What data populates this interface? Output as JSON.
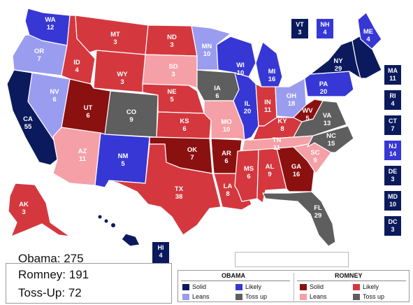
{
  "colors": {
    "obama_solid": "#0b1a5c",
    "obama_likely": "#3737d6",
    "obama_leans": "#9a9cf0",
    "romney_solid": "#8b1010",
    "romney_likely": "#d4383e",
    "romney_leans": "#f5a0a6",
    "toss_up": "#5e5e5e"
  },
  "states": [
    {
      "abbr": "WA",
      "ev": "12",
      "rating": "obama_likely"
    },
    {
      "abbr": "OR",
      "ev": "7",
      "rating": "obama_leans"
    },
    {
      "abbr": "CA",
      "ev": "55",
      "rating": "obama_solid"
    },
    {
      "abbr": "NV",
      "ev": "6",
      "rating": "obama_leans"
    },
    {
      "abbr": "ID",
      "ev": "4",
      "rating": "romney_likely"
    },
    {
      "abbr": "MT",
      "ev": "3",
      "rating": "romney_likely"
    },
    {
      "abbr": "WY",
      "ev": "3",
      "rating": "romney_likely"
    },
    {
      "abbr": "UT",
      "ev": "6",
      "rating": "romney_solid"
    },
    {
      "abbr": "AZ",
      "ev": "11",
      "rating": "romney_leans"
    },
    {
      "abbr": "CO",
      "ev": "9",
      "rating": "toss_up"
    },
    {
      "abbr": "NM",
      "ev": "5",
      "rating": "obama_likely"
    },
    {
      "abbr": "ND",
      "ev": "3",
      "rating": "romney_likely"
    },
    {
      "abbr": "SD",
      "ev": "3",
      "rating": "romney_leans"
    },
    {
      "abbr": "NE",
      "ev": "5",
      "rating": "romney_likely"
    },
    {
      "abbr": "KS",
      "ev": "6",
      "rating": "romney_likely"
    },
    {
      "abbr": "OK",
      "ev": "7",
      "rating": "romney_solid"
    },
    {
      "abbr": "TX",
      "ev": "38",
      "rating": "romney_likely"
    },
    {
      "abbr": "MN",
      "ev": "10",
      "rating": "obama_leans"
    },
    {
      "abbr": "IA",
      "ev": "6",
      "rating": "toss_up"
    },
    {
      "abbr": "MO",
      "ev": "10",
      "rating": "romney_leans"
    },
    {
      "abbr": "AR",
      "ev": "6",
      "rating": "romney_solid"
    },
    {
      "abbr": "LA",
      "ev": "8",
      "rating": "romney_likely"
    },
    {
      "abbr": "WI",
      "ev": "10",
      "rating": "obama_likely"
    },
    {
      "abbr": "IL",
      "ev": "20",
      "rating": "obama_likely"
    },
    {
      "abbr": "MI",
      "ev": "16",
      "rating": "obama_likely"
    },
    {
      "abbr": "IN",
      "ev": "11",
      "rating": "romney_likely"
    },
    {
      "abbr": "OH",
      "ev": "18",
      "rating": "obama_leans"
    },
    {
      "abbr": "KY",
      "ev": "8",
      "rating": "romney_likely"
    },
    {
      "abbr": "TN",
      "ev": "11",
      "rating": "romney_leans"
    },
    {
      "abbr": "MS",
      "ev": "6",
      "rating": "romney_likely"
    },
    {
      "abbr": "AL",
      "ev": "9",
      "rating": "romney_likely"
    },
    {
      "abbr": "GA",
      "ev": "16",
      "rating": "romney_solid"
    },
    {
      "abbr": "FL",
      "ev": "29",
      "rating": "toss_up"
    },
    {
      "abbr": "SC",
      "ev": "9",
      "rating": "romney_leans"
    },
    {
      "abbr": "NC",
      "ev": "15",
      "rating": "toss_up"
    },
    {
      "abbr": "VA",
      "ev": "13",
      "rating": "toss_up"
    },
    {
      "abbr": "WV",
      "ev": "5",
      "rating": "romney_solid"
    },
    {
      "abbr": "PA",
      "ev": "20",
      "rating": "obama_likely"
    },
    {
      "abbr": "NY",
      "ev": "29",
      "rating": "obama_solid"
    },
    {
      "abbr": "ME",
      "ev": "4",
      "rating": "obama_likely"
    },
    {
      "abbr": "AK",
      "ev": "3",
      "rating": "romney_likely"
    },
    {
      "abbr": "HI",
      "ev": "4",
      "rating": "obama_solid"
    },
    {
      "abbr": "VT",
      "ev": "3",
      "rating": "obama_solid"
    },
    {
      "abbr": "NH",
      "ev": "4",
      "rating": "obama_likely"
    },
    {
      "abbr": "MA",
      "ev": "11",
      "rating": "obama_solid"
    },
    {
      "abbr": "RI",
      "ev": "4",
      "rating": "obama_solid"
    },
    {
      "abbr": "CT",
      "ev": "7",
      "rating": "obama_solid"
    },
    {
      "abbr": "NJ",
      "ev": "14",
      "rating": "obama_likely"
    },
    {
      "abbr": "DE",
      "ev": "3",
      "rating": "obama_solid"
    },
    {
      "abbr": "MD",
      "ev": "10",
      "rating": "obama_solid"
    },
    {
      "abbr": "DC",
      "ev": "3",
      "rating": "obama_solid"
    }
  ],
  "totals": {
    "obama": "Obama: 275",
    "romney": "Romney: 191",
    "tossup": "Toss-Up: 72"
  },
  "search": {
    "value": ""
  },
  "legend": {
    "obama_header": "OBAMA",
    "romney_header": "ROMNEY",
    "solid": "Solid",
    "likely": "Likely",
    "leans": "Leans",
    "toss_up": "Toss up"
  }
}
